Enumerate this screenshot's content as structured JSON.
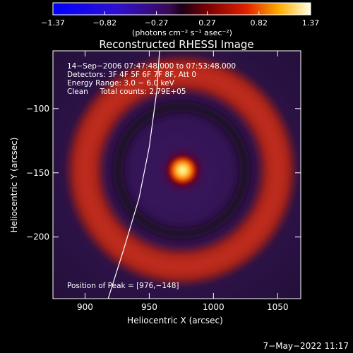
{
  "chart_data": {
    "type": "heatmap",
    "title": "Reconstructed RHESSI Image",
    "xlabel": "Heliocentric X (arcsec)",
    "ylabel": "Heliocentric Y (arcsec)",
    "xlim": [
      875,
      1068
    ],
    "ylim": [
      -248,
      -55
    ],
    "x_ticks": [
      900,
      950,
      1000,
      1050
    ],
    "x_tick_labels": [
      "900",
      "950",
      "1000",
      "1050"
    ],
    "y_ticks": [
      -100,
      -150,
      -200
    ],
    "y_tick_labels": [
      "−100",
      "−150",
      "−200"
    ],
    "colorbar": {
      "range": [
        -1.37,
        1.37
      ],
      "tick_values": [
        -1.37,
        -0.82,
        -0.27,
        0.27,
        0.82,
        1.37
      ],
      "tick_labels": [
        "−1.37",
        "−0.82",
        "−0.27",
        "0.27",
        "0.82",
        "1.37"
      ],
      "unit_label": "(photons cm⁻² s⁻¹ asec⁻²)"
    },
    "annotations": [
      "14−Sep−2006 07:47:48.000 to 07:53:48.000",
      "Detectors: 3F 4F 5F 6F 7F 8F, Att 0",
      "Energy Range: 3.0 − 6.0 keV",
      "Clean     Total counts: 2.79E+05",
      "Position of Peak = [976,−148]"
    ],
    "peak": {
      "x": 976,
      "y": -148,
      "value": 1.37
    },
    "ring": {
      "center_x": 975,
      "center_y": -148,
      "radius": 75,
      "value": 0.55
    },
    "limb_curve": {
      "points": [
        [
          918,
          -248
        ],
        [
          930,
          -210
        ],
        [
          942,
          -170
        ],
        [
          950,
          -130
        ],
        [
          956,
          -85
        ],
        [
          958,
          -55
        ]
      ]
    },
    "grid": false,
    "legend": "none"
  },
  "footer": {
    "timestamp": "7−May−2022 11:17"
  }
}
